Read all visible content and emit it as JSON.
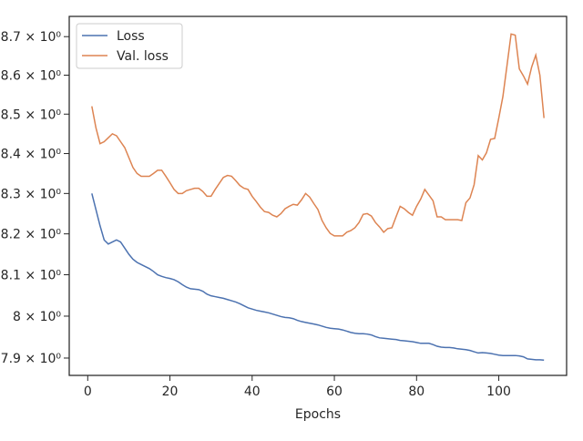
{
  "chart_data": {
    "type": "line",
    "xlabel": "Epochs",
    "log_y": true,
    "legend": "upper left",
    "x": [
      1,
      2,
      3,
      4,
      5,
      6,
      7,
      8,
      9,
      10,
      11,
      12,
      13,
      14,
      15,
      16,
      17,
      18,
      19,
      20,
      21,
      22,
      23,
      24,
      25,
      26,
      27,
      28,
      29,
      30,
      31,
      32,
      33,
      34,
      35,
      36,
      37,
      38,
      39,
      40,
      41,
      42,
      43,
      44,
      45,
      46,
      47,
      48,
      49,
      50,
      51,
      52,
      53,
      54,
      55,
      56,
      57,
      58,
      59,
      60,
      61,
      62,
      63,
      64,
      65,
      66,
      67,
      68,
      69,
      70,
      71,
      72,
      73,
      74,
      75,
      76,
      77,
      78,
      79,
      80,
      81,
      82,
      83,
      84,
      85,
      86,
      87,
      88,
      89,
      90,
      91,
      92,
      93,
      94,
      95,
      96,
      97,
      98,
      99,
      100,
      101,
      102,
      103,
      104,
      105,
      106,
      107,
      108,
      109,
      110,
      111
    ],
    "series": [
      {
        "name": "Loss",
        "color": "#4c72b0",
        "values": [
          8.3,
          8.26,
          8.22,
          8.185,
          8.175,
          8.18,
          8.185,
          8.18,
          8.165,
          8.15,
          8.138,
          8.13,
          8.125,
          8.12,
          8.115,
          8.108,
          8.1,
          8.096,
          8.093,
          8.091,
          8.088,
          8.083,
          8.076,
          8.07,
          8.066,
          8.065,
          8.064,
          8.06,
          8.053,
          8.049,
          8.047,
          8.045,
          8.043,
          8.04,
          8.037,
          8.034,
          8.03,
          8.025,
          8.02,
          8.017,
          8.014,
          8.012,
          8.01,
          8.008,
          8.005,
          8.002,
          7.999,
          7.997,
          7.996,
          7.994,
          7.99,
          7.987,
          7.985,
          7.983,
          7.981,
          7.979,
          7.976,
          7.973,
          7.971,
          7.97,
          7.969,
          7.967,
          7.964,
          7.961,
          7.959,
          7.958,
          7.958,
          7.957,
          7.955,
          7.951,
          7.948,
          7.947,
          7.946,
          7.945,
          7.944,
          7.942,
          7.941,
          7.94,
          7.939,
          7.937,
          7.935,
          7.935,
          7.935,
          7.932,
          7.928,
          7.926,
          7.925,
          7.925,
          7.924,
          7.922,
          7.921,
          7.92,
          7.918,
          7.915,
          7.912,
          7.913,
          7.912,
          7.911,
          7.909,
          7.907,
          7.906,
          7.906,
          7.906,
          7.906,
          7.905,
          7.903,
          7.898,
          7.897,
          7.896,
          7.896,
          7.895
        ]
      },
      {
        "name": "Val. loss",
        "color": "#dd8452",
        "values": [
          8.52,
          8.465,
          8.425,
          8.43,
          8.44,
          8.45,
          8.445,
          8.43,
          8.415,
          8.39,
          8.365,
          8.35,
          8.343,
          8.343,
          8.343,
          8.35,
          8.358,
          8.358,
          8.343,
          8.327,
          8.31,
          8.3,
          8.3,
          8.307,
          8.31,
          8.313,
          8.313,
          8.305,
          8.293,
          8.293,
          8.31,
          8.325,
          8.34,
          8.345,
          8.343,
          8.332,
          8.32,
          8.313,
          8.31,
          8.293,
          8.28,
          8.266,
          8.255,
          8.253,
          8.246,
          8.242,
          8.25,
          8.262,
          8.268,
          8.273,
          8.271,
          8.284,
          8.3,
          8.291,
          8.275,
          8.26,
          8.233,
          8.215,
          8.201,
          8.195,
          8.195,
          8.195,
          8.204,
          8.208,
          8.215,
          8.228,
          8.248,
          8.25,
          8.244,
          8.228,
          8.217,
          8.204,
          8.213,
          8.215,
          8.242,
          8.268,
          8.262,
          8.253,
          8.246,
          8.268,
          8.286,
          8.31,
          8.296,
          8.282,
          8.242,
          8.242,
          8.235,
          8.235,
          8.235,
          8.235,
          8.233,
          8.277,
          8.289,
          8.322,
          8.395,
          8.384,
          8.402,
          8.436,
          8.438,
          8.49,
          8.545,
          8.625,
          8.707,
          8.704,
          8.616,
          8.598,
          8.577,
          8.621,
          8.652,
          8.6,
          8.49
        ]
      }
    ],
    "xlim": [
      -4.5,
      116.5
    ],
    "xticks": [
      0,
      20,
      40,
      60,
      80,
      100
    ],
    "ylim": [
      7.859,
      8.753
    ],
    "yticks": [
      {
        "value": 7.9,
        "label": "7.9 × 10⁰"
      },
      {
        "value": 8,
        "label": "8 × 10⁰"
      },
      {
        "value": 8.1,
        "label": "8.1 × 10⁰"
      },
      {
        "value": 8.2,
        "label": "8.2 × 10⁰"
      },
      {
        "value": 8.3,
        "label": "8.3 × 10⁰"
      },
      {
        "value": 8.4,
        "label": "8.4 × 10⁰"
      },
      {
        "value": 8.5,
        "label": "8.5 × 10⁰"
      },
      {
        "value": 8.6,
        "label": "8.6 × 10⁰"
      },
      {
        "value": 8.7,
        "label": "8.7 × 10⁰"
      }
    ]
  }
}
